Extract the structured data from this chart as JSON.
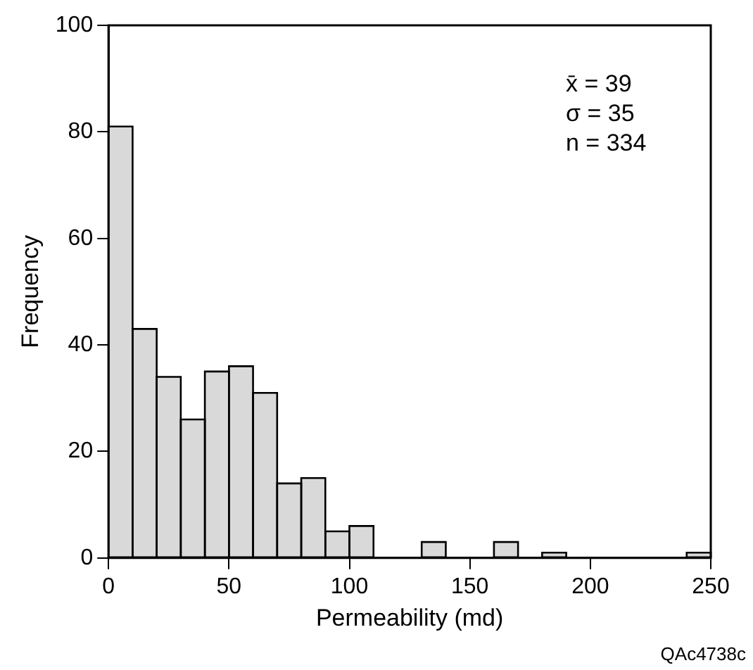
{
  "chart_data": {
    "type": "histogram",
    "xlabel": "Permeability (md)",
    "ylabel": "Frequency",
    "bins": [
      0,
      10,
      20,
      30,
      40,
      50,
      60,
      70,
      80,
      90,
      100,
      110,
      120,
      130,
      140,
      150,
      160,
      170,
      180,
      190,
      200,
      210,
      220,
      230,
      240,
      250
    ],
    "values": [
      81,
      43,
      34,
      26,
      35,
      36,
      31,
      14,
      15,
      5,
      6,
      0,
      0,
      3,
      0,
      0,
      3,
      0,
      1,
      0,
      0,
      0,
      0,
      0,
      1
    ],
    "color": "#d9d9d9",
    "xlim": [
      0,
      250
    ],
    "xticks": [
      0,
      50,
      100,
      150,
      200,
      250
    ],
    "ylim": [
      0,
      100
    ],
    "yticks": [
      0,
      20,
      40,
      60,
      80,
      100
    ],
    "grid": false,
    "legend": false,
    "annotations": [
      "x̄ = 39",
      "σ = 35",
      "n = 334",
      "QAc4738c"
    ]
  }
}
